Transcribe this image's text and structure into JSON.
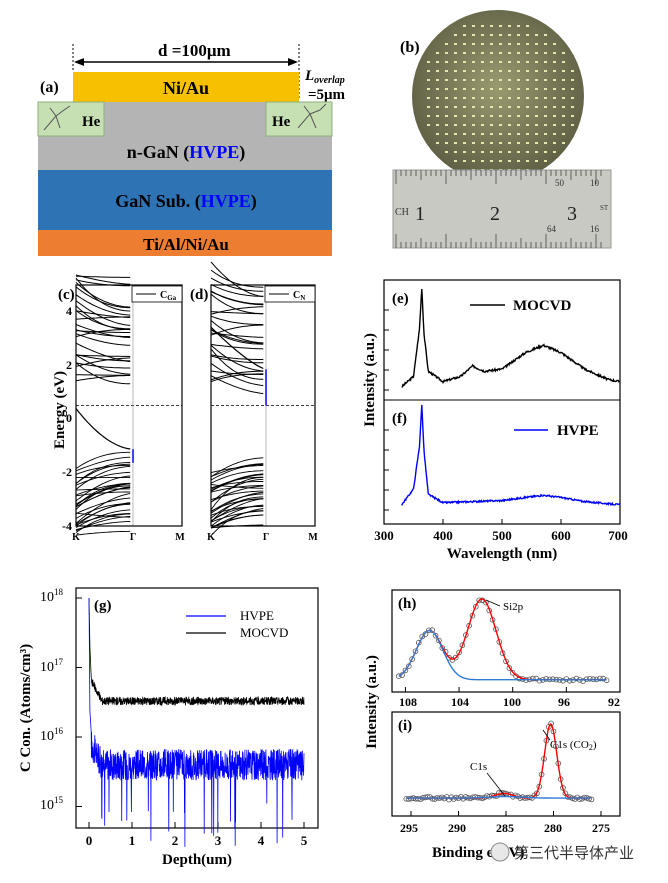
{
  "colors": {
    "gold": "#f7c000",
    "gray": "#b4b4b4",
    "blue_sub": "#2e74b5",
    "orange": "#ed7d31",
    "he_green": "#c6e0b4",
    "hvpe_blue": "#0000ff",
    "red_fit": "#ff0000",
    "wafer": "#8a8a62"
  },
  "panel_a": {
    "label": "(a)",
    "width_label": "d =100μm",
    "overlap_l": "L",
    "overlap_sub": "overlap",
    "overlap_val": "=5μm",
    "layer_top": "Ni/Au",
    "he_left": "He",
    "he_right": "He",
    "ngan_pre": "n-GaN (",
    "ngan_hvpe": "HVPE",
    "ngan_post": ")",
    "sub_pre": "GaN Sub. (",
    "sub_hvpe": "HVPE",
    "sub_post": ")",
    "bottom": "Ti/Al/Ni/Au"
  },
  "panel_b": {
    "label": "(b)",
    "ruler_upper": [
      "50",
      "10",
      "ST"
    ],
    "ruler_lower": [
      "64",
      "16"
    ],
    "ruler_main": [
      "CH",
      "1",
      "2",
      "3"
    ]
  },
  "band": {
    "label_c": "(c)",
    "label_d": "(d)",
    "legend_c": "C",
    "legend_c_sub": "Ga",
    "legend_d": "C",
    "legend_d_sub": "N",
    "ylabel": "Energy (eV)",
    "yticks": [
      "4",
      "2",
      "0",
      "-2",
      "-4"
    ],
    "xticks": [
      "K",
      "Γ",
      "M"
    ]
  },
  "pl": {
    "label_e": "(e)",
    "label_f": "(f)",
    "legend_e": "MOCVD",
    "legend_f": "HVPE",
    "ylabel": "Intensity (a.u.)",
    "xlabel": "Wavelength (nm)",
    "xticks": [
      "300",
      "400",
      "500",
      "600",
      "700"
    ]
  },
  "sims": {
    "label": "(g)",
    "legend": [
      "HVPE",
      "MOCVD"
    ],
    "ylabel": "C Con. (Atoms/cm³)",
    "xlabel": "Depth(um)",
    "ytick_base": "10",
    "ytick_exp": [
      "18",
      "17",
      "16",
      "15"
    ],
    "xticks": [
      "0",
      "1",
      "2",
      "3",
      "4",
      "5"
    ]
  },
  "xps": {
    "label_h": "(h)",
    "label_i": "(i)",
    "peak_h": "Si2p",
    "peak_i1": "C1s",
    "peak_i2": "C1s (CO",
    "peak_i2_sub": "2",
    "peak_i2_end": ")",
    "ylabel": "Intensity (a.u.)",
    "xticks_h": [
      "108",
      "104",
      "100",
      "96",
      "92"
    ],
    "xticks_i": [
      "295",
      "290",
      "285",
      "280",
      "275"
    ],
    "xlabel": "Binding  e   (eV)",
    "watermark": "第三代半导体产业"
  },
  "chart_data": [
    {
      "type": "line",
      "title": "",
      "ylabel": "Intensity (a.u.)",
      "xlabel": "Wavelength (nm)",
      "xlim": [
        300,
        700
      ],
      "series": [
        {
          "name": "MOCVD",
          "x": [
            330,
            350,
            360,
            364,
            368,
            375,
            400,
            430,
            450,
            470,
            500,
            540,
            570,
            600,
            640,
            680,
            700
          ],
          "values": [
            0.05,
            0.15,
            0.6,
            1.0,
            0.55,
            0.2,
            0.1,
            0.15,
            0.25,
            0.2,
            0.22,
            0.38,
            0.45,
            0.38,
            0.22,
            0.12,
            0.1
          ]
        },
        {
          "name": "HVPE",
          "x": [
            330,
            350,
            360,
            364,
            368,
            375,
            400,
            450,
            500,
            540,
            570,
            600,
            640,
            700
          ],
          "values": [
            0.05,
            0.2,
            0.6,
            1.0,
            0.55,
            0.15,
            0.07,
            0.08,
            0.09,
            0.12,
            0.14,
            0.12,
            0.08,
            0.05
          ]
        }
      ]
    },
    {
      "type": "line",
      "title": "",
      "ylabel": "C Con. (Atoms/cm³)",
      "xlabel": "Depth(um)",
      "xlim": [
        -0.2,
        5.2
      ],
      "ylim": [
        700000000000000.0,
        1e+18
      ],
      "scale_y": "log",
      "series": [
        {
          "name": "HVPE",
          "x": [
            0,
            0.05,
            0.1,
            1,
            2,
            3,
            4,
            5
          ],
          "values": [
            1e+18,
            4e+16,
            1.2e+16,
            4000000000000000.0,
            4000000000000000.0,
            4000000000000000.0,
            4000000000000000.0,
            4000000000000000.0
          ]
        },
        {
          "name": "MOCVD",
          "x": [
            0,
            0.05,
            0.1,
            1,
            2,
            3,
            4,
            5
          ],
          "values": [
            1e+18,
            5e+16,
            3.3e+16,
            3.3e+16,
            3.3e+16,
            3.3e+16,
            3.3e+16,
            3.4e+16
          ]
        }
      ]
    },
    {
      "type": "line",
      "title": "",
      "ylabel": "Intensity (a.u.)",
      "xlim": [
        109,
        92
      ],
      "series": [
        {
          "name": "Si2p",
          "x": [
            108.5,
            107,
            106,
            105,
            104,
            103,
            102.3,
            101,
            100,
            98,
            96,
            94
          ],
          "values": [
            0.2,
            0.55,
            0.62,
            0.55,
            0.62,
            0.95,
            1.0,
            0.6,
            0.25,
            0.1,
            0.08,
            0.07
          ]
        }
      ]
    },
    {
      "type": "line",
      "title": "",
      "ylabel": "Intensity (a.u.)",
      "xlim": [
        297,
        273
      ],
      "series": [
        {
          "name": "C1s",
          "x": [
            295,
            290,
            286,
            285,
            284,
            282,
            281,
            280.3,
            279.5,
            279,
            277,
            275
          ],
          "values": [
            0.05,
            0.05,
            0.06,
            0.1,
            0.08,
            0.15,
            0.6,
            1.0,
            0.55,
            0.25,
            0.06,
            0.05
          ]
        }
      ]
    }
  ]
}
